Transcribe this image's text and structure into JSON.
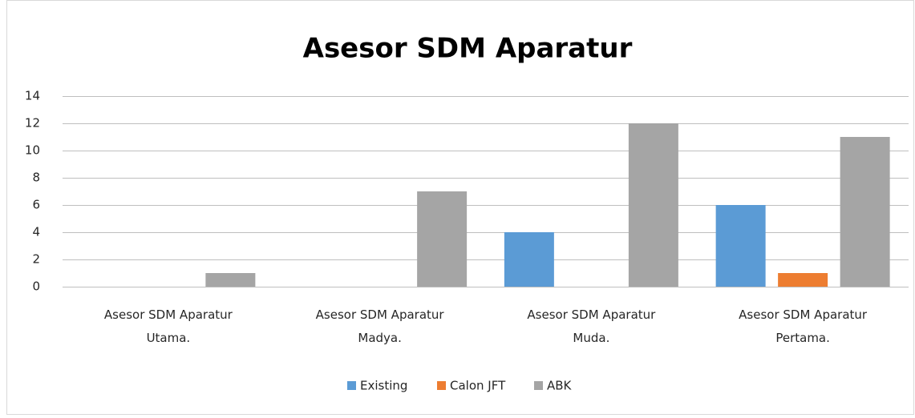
{
  "chart_data": {
    "type": "bar",
    "title": "Asesor SDM Aparatur",
    "categories": [
      "Asesor SDM Aparatur Utama.",
      "Asesor SDM Aparatur Madya.",
      "Asesor SDM Aparatur Muda.",
      "Asesor SDM Aparatur Pertama."
    ],
    "series": [
      {
        "name": "Existing",
        "color": "#5b9bd5",
        "values": [
          0,
          0,
          4,
          6
        ]
      },
      {
        "name": "Calon JFT",
        "color": "#ed7d31",
        "values": [
          0,
          0,
          0,
          1
        ]
      },
      {
        "name": "ABK",
        "color": "#a5a5a5",
        "values": [
          1,
          7,
          12,
          11
        ]
      }
    ],
    "ylim": [
      0,
      14
    ],
    "yticks": [
      0,
      2,
      4,
      6,
      8,
      10,
      12,
      14
    ],
    "grid": true,
    "legend": "bottom"
  }
}
